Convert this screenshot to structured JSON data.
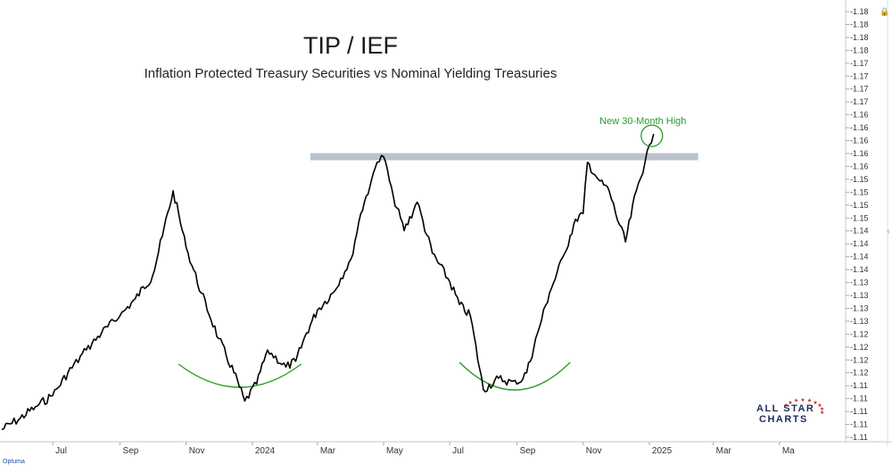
{
  "chart_data": {
    "type": "line",
    "title": "TIP / IEF",
    "subtitle": "Inflation Protected Treasury Securities vs Nominal Yielding Treasuries",
    "x_tick_labels": [
      "Jul",
      "Sep",
      "Nov",
      "2024",
      "Mar",
      "May",
      "Jul",
      "Sep",
      "Nov",
      "2025",
      "Mar",
      "Ma"
    ],
    "y_tick_labels": [
      "1.18",
      "1.18",
      "1.18",
      "1.18",
      "1.17",
      "1.17",
      "1.17",
      "1.17",
      "1.16",
      "1.16",
      "1.16",
      "1.16",
      "1.16",
      "1.15",
      "1.15",
      "1.15",
      "1.15",
      "1.14",
      "1.14",
      "1.14",
      "1.14",
      "1.13",
      "1.13",
      "1.13",
      "1.13",
      "1.12",
      "1.12",
      "1.12",
      "1.12",
      "1.11",
      "1.11",
      "1.11",
      "1.11",
      "1.11"
    ],
    "ylim": [
      1.106,
      1.182
    ],
    "series": [
      {
        "x": [
          "2023-05-15",
          "2023-06-01",
          "2023-06-15",
          "2023-07-01",
          "2023-07-15",
          "2023-08-01",
          "2023-08-15",
          "2023-09-01",
          "2023-09-15",
          "2023-10-01",
          "2023-10-10",
          "2023-10-20",
          "2023-11-01",
          "2023-11-15",
          "2023-12-01",
          "2023-12-15",
          "2023-12-25",
          "2024-01-05",
          "2024-01-15",
          "2024-02-01",
          "2024-02-10",
          "2024-02-20",
          "2024-03-01",
          "2024-03-15",
          "2024-04-01",
          "2024-04-10",
          "2024-04-20",
          "2024-04-25",
          "2024-05-01",
          "2024-05-10",
          "2024-05-20",
          "2024-06-01",
          "2024-06-15",
          "2024-07-01",
          "2024-07-10",
          "2024-07-20",
          "2024-08-01",
          "2024-08-15",
          "2024-09-01",
          "2024-09-10",
          "2024-09-20",
          "2024-10-01",
          "2024-10-15",
          "2024-10-25",
          "2024-11-01",
          "2024-11-05",
          "2024-11-15",
          "2024-11-25",
          "2024-12-01",
          "2024-12-10",
          "2024-12-20",
          "2024-12-28",
          "2025-01-01",
          "2025-01-05"
        ],
        "y": [
          1.108,
          1.11,
          1.112,
          1.114,
          1.118,
          1.122,
          1.125,
          1.128,
          1.131,
          1.135,
          1.142,
          1.15,
          1.14,
          1.132,
          1.124,
          1.118,
          1.113,
          1.116,
          1.122,
          1.119,
          1.12,
          1.125,
          1.129,
          1.132,
          1.138,
          1.146,
          1.152,
          1.155,
          1.156,
          1.149,
          1.143,
          1.148,
          1.139,
          1.134,
          1.13,
          1.128,
          1.115,
          1.117,
          1.116,
          1.118,
          1.125,
          1.132,
          1.139,
          1.145,
          1.146,
          1.155,
          1.152,
          1.15,
          1.146,
          1.141,
          1.15,
          1.155,
          1.158,
          1.16
        ]
      }
    ],
    "annotations": {
      "resistance_label": "New 30-Month High"
    },
    "colors": {
      "line": "#000000",
      "resistance": "#aeb8c4",
      "annotation": "#2a9a2a"
    }
  },
  "branding": {
    "logo_line1": "ALL STAR",
    "logo_line2": "CHARTS",
    "platform": "Optuma"
  }
}
